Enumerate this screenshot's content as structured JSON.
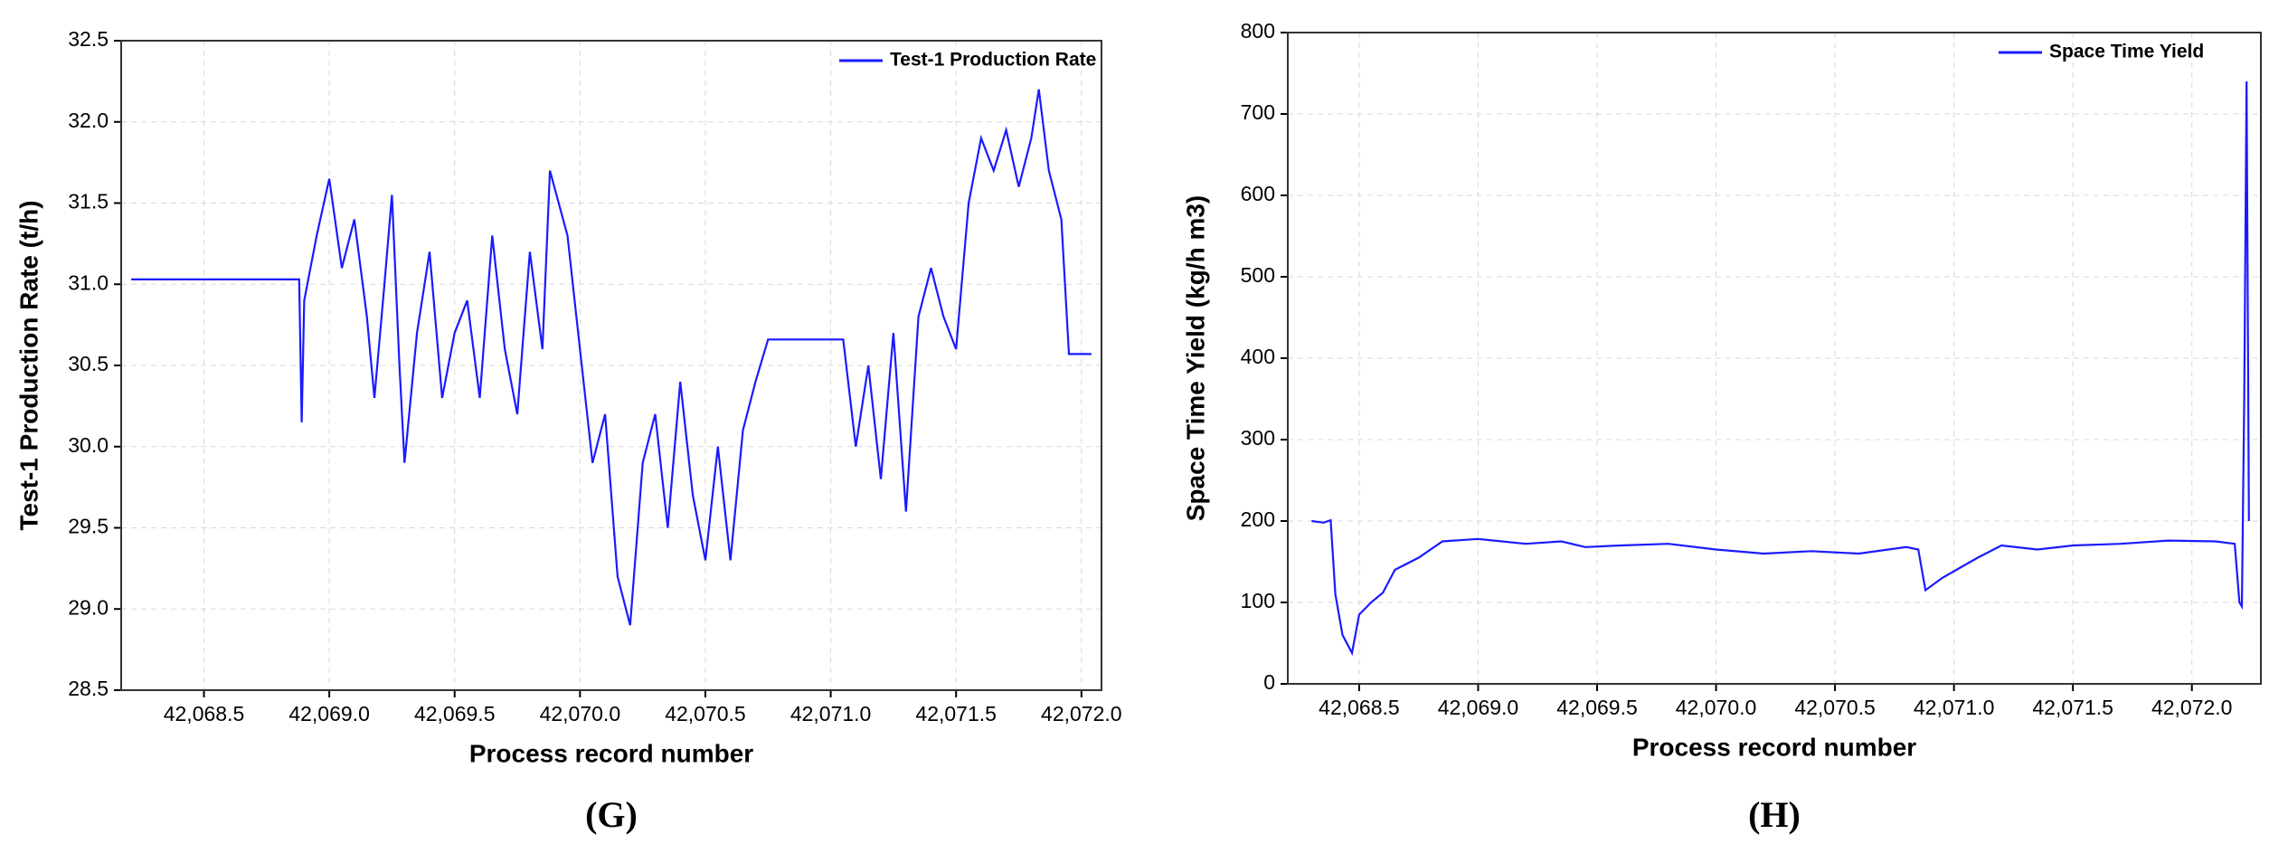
{
  "chart_data": [
    {
      "type": "line",
      "panel_label": "(G)",
      "xlabel": "Process record number",
      "ylabel": "Test-1 Production Rate (t/h)",
      "xlim": [
        42068.17,
        42072.08
      ],
      "ylim": [
        28.5,
        32.5
      ],
      "xticks": [
        {
          "value": 42068.5,
          "label": "42,068.5"
        },
        {
          "value": 42069.0,
          "label": "42,069.0"
        },
        {
          "value": 42069.5,
          "label": "42,069.5"
        },
        {
          "value": 42070.0,
          "label": "42,070.0"
        },
        {
          "value": 42070.5,
          "label": "42,070.5"
        },
        {
          "value": 42071.0,
          "label": "42,071.0"
        },
        {
          "value": 42071.5,
          "label": "42,071.5"
        },
        {
          "value": 42072.0,
          "label": "42,072.0"
        }
      ],
      "yticks": [
        28.5,
        {
          "value": 29,
          "label": "29.0"
        },
        29.5,
        {
          "value": 30,
          "label": "30.0"
        },
        30.5,
        {
          "value": 31,
          "label": "31.0"
        },
        31.5,
        {
          "value": 32,
          "label": "32.0"
        },
        32.5
      ],
      "grid": true,
      "legend": "upper right",
      "x": [
        42068.21,
        42068.88,
        42068.89,
        42068.9,
        42068.95,
        42069.0,
        42069.05,
        42069.1,
        42069.15,
        42069.18,
        42069.22,
        42069.25,
        42069.28,
        42069.3,
        42069.35,
        42069.4,
        42069.45,
        42069.5,
        42069.55,
        42069.6,
        42069.65,
        42069.7,
        42069.75,
        42069.8,
        42069.85,
        42069.88,
        42069.95,
        42070.0,
        42070.05,
        42070.1,
        42070.15,
        42070.2,
        42070.25,
        42070.3,
        42070.35,
        42070.4,
        42070.45,
        42070.5,
        42070.55,
        42070.6,
        42070.65,
        42070.7,
        42070.75,
        42071.05,
        42071.1,
        42071.15,
        42071.2,
        42071.25,
        42071.3,
        42071.35,
        42071.4,
        42071.45,
        42071.5,
        42071.55,
        42071.6,
        42071.65,
        42071.7,
        42071.75,
        42071.8,
        42071.83,
        42071.87,
        42071.92,
        42071.95,
        42072.04
      ],
      "series": [
        {
          "name": "Test-1 Production Rate",
          "color": "#1a1aff",
          "values": [
            31.03,
            31.03,
            30.15,
            30.9,
            31.3,
            31.65,
            31.1,
            31.4,
            30.8,
            30.3,
            31.0,
            31.55,
            30.5,
            29.9,
            30.7,
            31.2,
            30.3,
            30.7,
            30.9,
            30.3,
            31.3,
            30.6,
            30.2,
            31.2,
            30.6,
            31.7,
            31.3,
            30.6,
            29.9,
            30.2,
            29.2,
            28.9,
            29.9,
            30.2,
            29.5,
            30.4,
            29.7,
            29.3,
            30.0,
            29.3,
            30.1,
            30.4,
            30.66,
            30.66,
            30.0,
            30.5,
            29.8,
            30.7,
            29.6,
            30.8,
            31.1,
            30.8,
            30.6,
            31.5,
            31.9,
            31.7,
            31.95,
            31.6,
            31.9,
            32.2,
            31.7,
            31.4,
            30.57,
            30.57
          ]
        }
      ]
    },
    {
      "type": "line",
      "panel_label": "(H)",
      "xlabel": "Process record number",
      "ylabel": "Space Time Yield (kg/h m3)",
      "xlim": [
        42068.2,
        42072.29
      ],
      "ylim": [
        0,
        800
      ],
      "xticks": [
        {
          "value": 42068.5,
          "label": "42,068.5"
        },
        {
          "value": 42069.0,
          "label": "42,069.0"
        },
        {
          "value": 42069.5,
          "label": "42,069.5"
        },
        {
          "value": 42070.0,
          "label": "42,070.0"
        },
        {
          "value": 42070.5,
          "label": "42,070.5"
        },
        {
          "value": 42071.0,
          "label": "42,071.0"
        },
        {
          "value": 42071.5,
          "label": "42,071.5"
        },
        {
          "value": 42072.0,
          "label": "42,072.0"
        }
      ],
      "yticks": [
        0,
        100,
        200,
        300,
        400,
        500,
        600,
        700,
        800
      ],
      "grid": true,
      "legend": "upper right",
      "x": [
        42068.3,
        42068.35,
        42068.38,
        42068.4,
        42068.43,
        42068.47,
        42068.5,
        42068.55,
        42068.6,
        42068.65,
        42068.75,
        42068.85,
        42069.0,
        42069.2,
        42069.35,
        42069.45,
        42069.6,
        42069.8,
        42070.0,
        42070.2,
        42070.4,
        42070.6,
        42070.8,
        42070.85,
        42070.88,
        42070.95,
        42071.1,
        42071.2,
        42071.35,
        42071.5,
        42071.7,
        42071.9,
        42072.1,
        42072.18,
        42072.2,
        42072.21,
        42072.22,
        42072.23,
        42072.24
      ],
      "series": [
        {
          "name": "Space Time Yield",
          "color": "#1a1aff",
          "values": [
            200,
            198,
            201,
            110,
            60,
            38,
            85,
            100,
            112,
            140,
            155,
            175,
            178,
            172,
            175,
            168,
            170,
            172,
            165,
            160,
            163,
            160,
            168,
            165,
            115,
            130,
            155,
            170,
            165,
            170,
            172,
            176,
            175,
            172,
            100,
            95,
            350,
            740,
            200
          ]
        }
      ]
    }
  ]
}
